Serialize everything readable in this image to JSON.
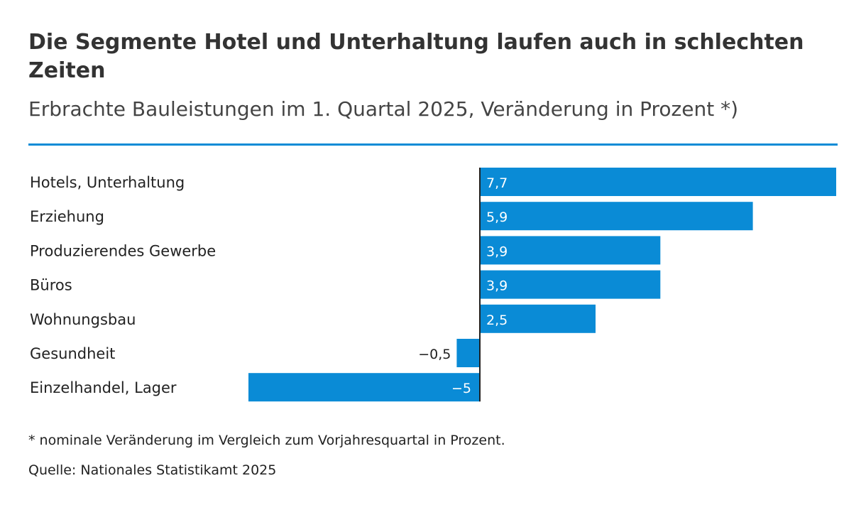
{
  "colors": {
    "bar": "#0a8bd6",
    "rule": "#0a8bd6",
    "axis": "#222222",
    "text": "#333333"
  },
  "chart_data": {
    "type": "bar",
    "orientation": "horizontal",
    "title": "Die Segmente Hotel und Unterhaltung laufen auch in schlechten Zeiten",
    "subtitle": "Erbrachte Bauleistungen im 1. Quartal 2025, Veränderung in Prozent *)",
    "categories": [
      "Hotels, Unterhaltung",
      "Erziehung",
      "Produzierendes Gewerbe",
      "Büros",
      "Wohnungsbau",
      "Gesundheit",
      "Einzelhandel, Lager"
    ],
    "values": [
      7.7,
      5.9,
      3.9,
      3.9,
      2.5,
      -0.5,
      -5
    ],
    "value_labels": [
      "7,7",
      "5,9",
      "3,9",
      "3,9",
      "2,5",
      "−0,5",
      "−5"
    ],
    "xlim": [
      -5,
      7.7
    ],
    "grid": false,
    "legend": "none"
  },
  "footer": {
    "footnote": "* nominale Veränderung im Vergleich zum Vorjahresquartal in Prozent.",
    "source": "Quelle: Nationales Statistikamt 2025"
  }
}
